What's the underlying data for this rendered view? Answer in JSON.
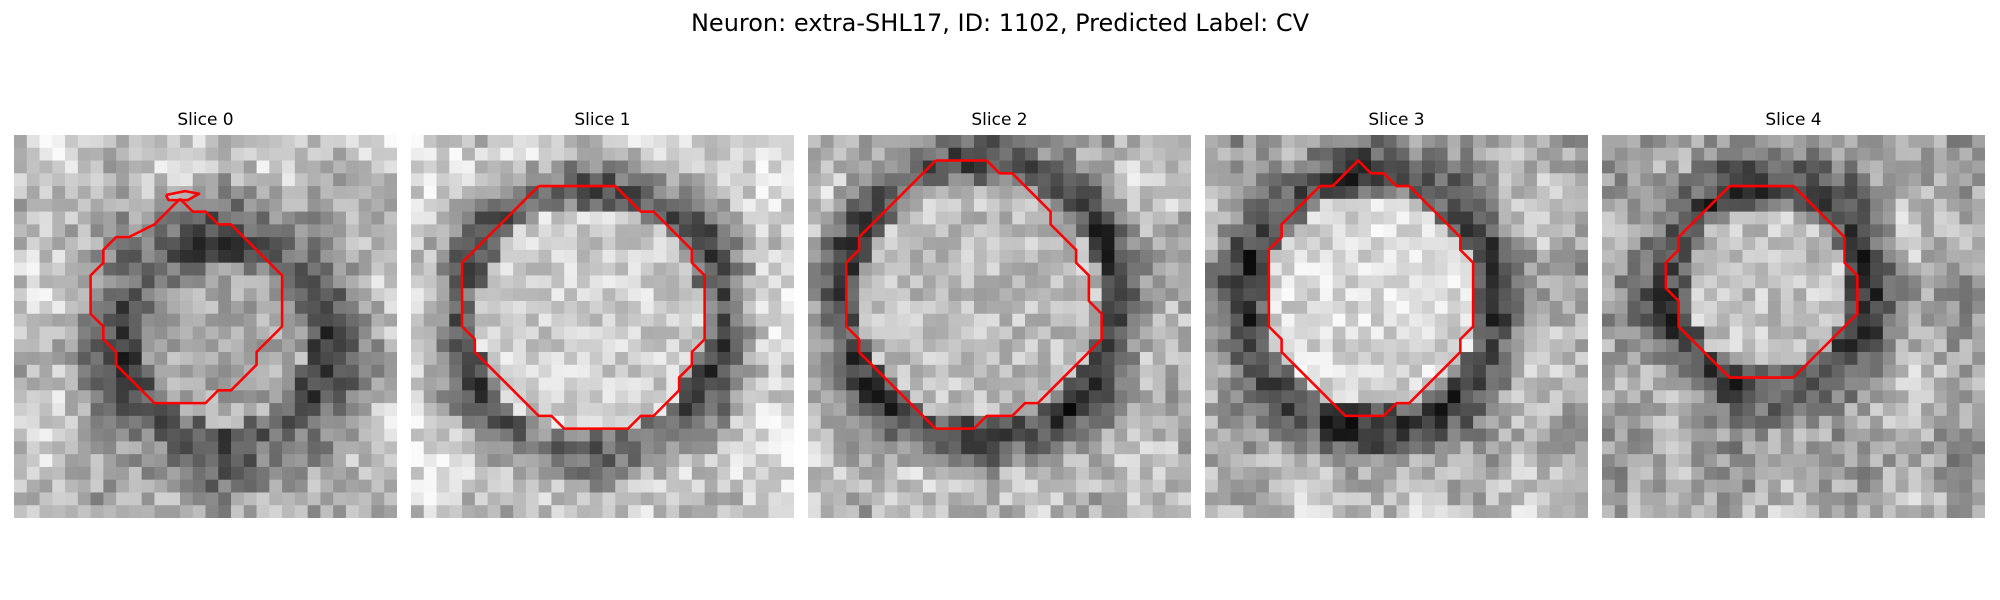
{
  "figure": {
    "title": "Neuron: extra-SHL17, ID: 1102, Predicted Label: CV"
  },
  "colors": {
    "contour": "#ff0000",
    "background": "#ffffff"
  },
  "panels": [
    {
      "title": "Slice 0",
      "contours": [
        [
          [
            13,
            5
          ],
          [
            12,
            6
          ],
          [
            11,
            7
          ],
          [
            9,
            8
          ],
          [
            8,
            8
          ],
          [
            7,
            9
          ],
          [
            7,
            10
          ],
          [
            6,
            11
          ],
          [
            6,
            12
          ],
          [
            6,
            13
          ],
          [
            6,
            14
          ],
          [
            7,
            15
          ],
          [
            7,
            16
          ],
          [
            8,
            17
          ],
          [
            8,
            18
          ],
          [
            9,
            19
          ],
          [
            10,
            20
          ],
          [
            11,
            21
          ],
          [
            12,
            21
          ],
          [
            13,
            21
          ],
          [
            14,
            21
          ],
          [
            15,
            21
          ],
          [
            16,
            20
          ],
          [
            17,
            20
          ],
          [
            18,
            19
          ],
          [
            19,
            18
          ],
          [
            19,
            17
          ],
          [
            20,
            16
          ],
          [
            21,
            15
          ],
          [
            21,
            14
          ],
          [
            21,
            13
          ],
          [
            21,
            12
          ],
          [
            21,
            11
          ],
          [
            20,
            10
          ],
          [
            19,
            9
          ],
          [
            18,
            8
          ],
          [
            17,
            7
          ],
          [
            16,
            7
          ],
          [
            15,
            6
          ],
          [
            14,
            6
          ],
          [
            13,
            5
          ]
        ],
        [
          [
            11.9,
            4.7
          ],
          [
            13.4,
            4.4
          ],
          [
            14.5,
            4.6
          ],
          [
            13.6,
            5.1
          ],
          [
            12.1,
            5.1
          ],
          [
            11.9,
            4.7
          ]
        ]
      ]
    },
    {
      "title": "Slice 1",
      "contours": [
        [
          [
            10,
            4
          ],
          [
            9,
            5
          ],
          [
            7,
            7
          ],
          [
            5,
            9
          ],
          [
            4,
            10
          ],
          [
            4,
            11
          ],
          [
            4,
            12
          ],
          [
            4,
            13
          ],
          [
            4,
            14
          ],
          [
            4,
            15
          ],
          [
            5,
            16
          ],
          [
            5,
            17
          ],
          [
            6,
            18
          ],
          [
            7,
            19
          ],
          [
            8,
            20
          ],
          [
            9,
            21
          ],
          [
            10,
            22
          ],
          [
            11,
            22
          ],
          [
            12,
            23
          ],
          [
            13,
            23
          ],
          [
            14,
            23
          ],
          [
            15,
            23
          ],
          [
            16,
            23
          ],
          [
            17,
            23
          ],
          [
            18,
            22
          ],
          [
            19,
            22
          ],
          [
            20,
            21
          ],
          [
            21,
            20
          ],
          [
            21,
            19
          ],
          [
            22,
            18
          ],
          [
            22,
            17
          ],
          [
            23,
            16
          ],
          [
            23,
            15
          ],
          [
            23,
            14
          ],
          [
            23,
            13
          ],
          [
            23,
            12
          ],
          [
            23,
            11
          ],
          [
            22,
            10
          ],
          [
            22,
            9
          ],
          [
            21,
            8
          ],
          [
            20,
            7
          ],
          [
            19,
            6
          ],
          [
            18,
            6
          ],
          [
            17,
            5
          ],
          [
            16,
            4
          ],
          [
            15,
            4
          ],
          [
            14,
            4
          ],
          [
            13,
            4
          ],
          [
            12,
            4
          ],
          [
            11,
            4
          ],
          [
            10,
            4
          ]
        ]
      ]
    },
    {
      "title": "Slice 2",
      "contours": [
        [
          [
            10,
            2
          ],
          [
            9,
            3
          ],
          [
            8,
            4
          ],
          [
            7,
            5
          ],
          [
            6,
            6
          ],
          [
            5,
            7
          ],
          [
            4,
            8
          ],
          [
            4,
            9
          ],
          [
            3,
            10
          ],
          [
            3,
            11
          ],
          [
            3,
            12
          ],
          [
            3,
            13
          ],
          [
            3,
            14
          ],
          [
            3,
            15
          ],
          [
            4,
            16
          ],
          [
            4,
            17
          ],
          [
            5,
            18
          ],
          [
            6,
            19
          ],
          [
            7,
            20
          ],
          [
            8,
            21
          ],
          [
            9,
            22
          ],
          [
            10,
            23
          ],
          [
            11,
            23
          ],
          [
            12,
            23
          ],
          [
            13,
            23
          ],
          [
            14,
            22
          ],
          [
            15,
            22
          ],
          [
            16,
            22
          ],
          [
            17,
            21
          ],
          [
            18,
            21
          ],
          [
            19,
            20
          ],
          [
            20,
            19
          ],
          [
            21,
            18
          ],
          [
            22,
            17
          ],
          [
            23,
            16
          ],
          [
            23,
            15
          ],
          [
            23,
            14
          ],
          [
            22,
            13
          ],
          [
            22,
            12
          ],
          [
            22,
            11
          ],
          [
            21,
            10
          ],
          [
            21,
            9
          ],
          [
            20,
            8
          ],
          [
            19,
            7
          ],
          [
            19,
            6
          ],
          [
            18,
            5
          ],
          [
            17,
            4
          ],
          [
            16,
            3
          ],
          [
            15,
            3
          ],
          [
            14,
            2
          ],
          [
            13,
            2
          ],
          [
            12,
            2
          ],
          [
            11,
            2
          ],
          [
            10,
            2
          ]
        ]
      ]
    },
    {
      "title": "Slice 3",
      "contours": [
        [
          [
            11,
            3
          ],
          [
            10,
            4
          ],
          [
            9,
            4
          ],
          [
            8,
            5
          ],
          [
            7,
            6
          ],
          [
            6,
            7
          ],
          [
            6,
            8
          ],
          [
            5,
            9
          ],
          [
            5,
            10
          ],
          [
            5,
            11
          ],
          [
            5,
            12
          ],
          [
            5,
            13
          ],
          [
            5,
            14
          ],
          [
            5,
            15
          ],
          [
            6,
            16
          ],
          [
            6,
            17
          ],
          [
            7,
            18
          ],
          [
            8,
            19
          ],
          [
            9,
            20
          ],
          [
            10,
            21
          ],
          [
            11,
            22
          ],
          [
            12,
            22
          ],
          [
            13,
            22
          ],
          [
            14,
            22
          ],
          [
            15,
            21
          ],
          [
            16,
            21
          ],
          [
            17,
            20
          ],
          [
            18,
            19
          ],
          [
            19,
            18
          ],
          [
            20,
            17
          ],
          [
            20,
            16
          ],
          [
            21,
            15
          ],
          [
            21,
            14
          ],
          [
            21,
            13
          ],
          [
            21,
            12
          ],
          [
            21,
            11
          ],
          [
            21,
            10
          ],
          [
            20,
            9
          ],
          [
            20,
            8
          ],
          [
            19,
            7
          ],
          [
            18,
            6
          ],
          [
            17,
            5
          ],
          [
            16,
            4
          ],
          [
            15,
            4
          ],
          [
            14,
            3
          ],
          [
            13,
            3
          ],
          [
            12,
            2
          ],
          [
            11,
            3
          ]
        ]
      ]
    },
    {
      "title": "Slice 4",
      "contours": [
        [
          [
            11,
            4
          ],
          [
            10,
            4
          ],
          [
            9,
            5
          ],
          [
            8,
            6
          ],
          [
            7,
            7
          ],
          [
            6,
            8
          ],
          [
            6,
            9
          ],
          [
            5,
            10
          ],
          [
            5,
            11
          ],
          [
            5,
            12
          ],
          [
            6,
            13
          ],
          [
            6,
            14
          ],
          [
            6,
            15
          ],
          [
            7,
            16
          ],
          [
            8,
            17
          ],
          [
            9,
            18
          ],
          [
            10,
            19
          ],
          [
            11,
            19
          ],
          [
            12,
            19
          ],
          [
            13,
            19
          ],
          [
            14,
            19
          ],
          [
            15,
            19
          ],
          [
            16,
            18
          ],
          [
            17,
            17
          ],
          [
            18,
            16
          ],
          [
            19,
            15
          ],
          [
            20,
            14
          ],
          [
            20,
            13
          ],
          [
            20,
            12
          ],
          [
            20,
            11
          ],
          [
            19,
            10
          ],
          [
            19,
            9
          ],
          [
            19,
            8
          ],
          [
            18,
            7
          ],
          [
            17,
            6
          ],
          [
            16,
            5
          ],
          [
            15,
            4
          ],
          [
            14,
            4
          ],
          [
            13,
            4
          ],
          [
            12,
            4
          ],
          [
            11,
            4
          ]
        ]
      ]
    }
  ]
}
